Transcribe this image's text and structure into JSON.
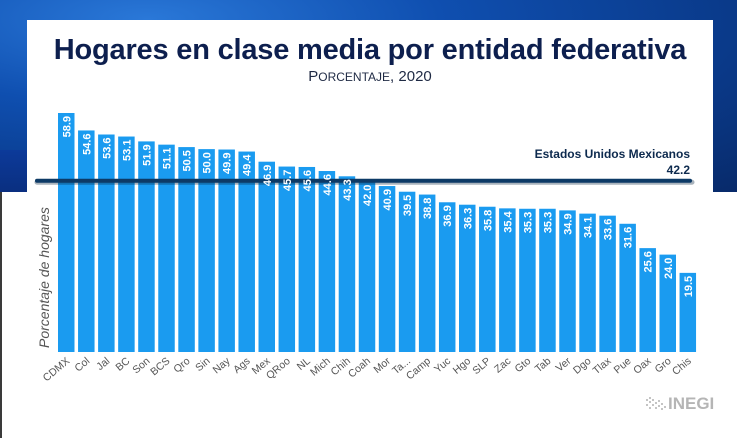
{
  "chart_data": {
    "type": "bar",
    "title": "Hogares en clase media por entidad federativa",
    "subtitle": "Porcentaje, 2020",
    "xlabel": "",
    "ylabel": "Porcentaje de hogares",
    "ylim": [
      0,
      60
    ],
    "grid": false,
    "categories": [
      "CDMX",
      "Col",
      "Jal",
      "BC",
      "Son",
      "BCS",
      "Qro",
      "Sin",
      "Nay",
      "Ags",
      "Mex",
      "QRoo",
      "NL",
      "Mich",
      "Chih",
      "Coah",
      "Mor",
      "Ta...",
      "Camp",
      "Yuc",
      "Hgo",
      "SLP",
      "Zac",
      "Gto",
      "Tab",
      "Ver",
      "Dgo",
      "Tlax",
      "Pue",
      "Oax",
      "Gro",
      "Chis"
    ],
    "values": [
      58.9,
      54.6,
      53.6,
      53.1,
      51.9,
      51.1,
      50.5,
      50.0,
      49.9,
      49.4,
      46.9,
      45.7,
      45.6,
      44.6,
      43.3,
      42.0,
      40.9,
      39.5,
      38.8,
      36.9,
      36.3,
      35.8,
      35.4,
      35.3,
      35.3,
      34.9,
      34.1,
      33.6,
      31.6,
      25.6,
      24.0,
      19.5
    ],
    "value_labels": [
      "58.9",
      "54.6",
      "53.6",
      "53.1",
      "51.9",
      "51.1",
      "50.5",
      "50.0",
      "49.9",
      "49.4",
      "46.9",
      "45.7",
      "45.6",
      "44.6",
      "43.3",
      "42.0",
      "40.9",
      "39.5",
      "38.8",
      "36.9",
      "36.3",
      "35.8",
      "35.4",
      "35.3",
      "35.3",
      "34.9",
      "34.1",
      "33.6",
      "31.6",
      "25.6",
      "24.0",
      "19.5"
    ],
    "reference_line": {
      "label": "Estados Unidos Mexicanos",
      "value": 42.2,
      "value_label": "42.2"
    },
    "colors": {
      "bar": "#1a9bf0",
      "reference_line": "#0d3a66",
      "title": "#0d1f4e",
      "tick_label": "#555555"
    }
  },
  "header": {
    "title": "Hogares en clase media por entidad federativa",
    "subtitle_initial": "P",
    "subtitle_rest": "ORCENTAJE",
    "subtitle_year": ", 2020"
  },
  "footer": {
    "logo_text": "INEGI"
  }
}
